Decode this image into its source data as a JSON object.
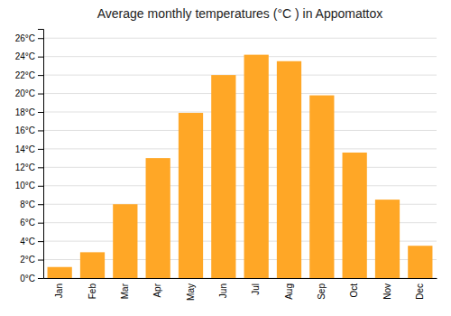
{
  "chart_data": {
    "type": "bar",
    "title": "Average monthly temperatures (°C ) in Appomattox",
    "categories": [
      "Jan",
      "Feb",
      "Mar",
      "Apr",
      "May",
      "Jun",
      "Jul",
      "Aug",
      "Sep",
      "Oct",
      "Nov",
      "Dec"
    ],
    "values": [
      1.2,
      2.8,
      8.0,
      13.0,
      17.9,
      22.0,
      24.2,
      23.5,
      19.8,
      13.6,
      8.5,
      3.5
    ],
    "color": "#FFA726",
    "ylim": [
      0,
      27
    ],
    "yticks": [
      {
        "value": 0,
        "label": "0°C"
      },
      {
        "value": 2,
        "label": "2°C"
      },
      {
        "value": 4,
        "label": "4°C"
      },
      {
        "value": 6,
        "label": "6°C"
      },
      {
        "value": 8,
        "label": "8°C"
      },
      {
        "value": 10,
        "label": "10°C"
      },
      {
        "value": 12,
        "label": "12°C"
      },
      {
        "value": 14,
        "label": "14°C"
      },
      {
        "value": 16,
        "label": "16°C"
      },
      {
        "value": 18,
        "label": "18°C"
      },
      {
        "value": 20,
        "label": "20°C"
      },
      {
        "value": 22,
        "label": "22°C"
      },
      {
        "value": 24,
        "label": "24°C"
      },
      {
        "value": 26,
        "label": "26°C"
      }
    ],
    "grid": true
  }
}
